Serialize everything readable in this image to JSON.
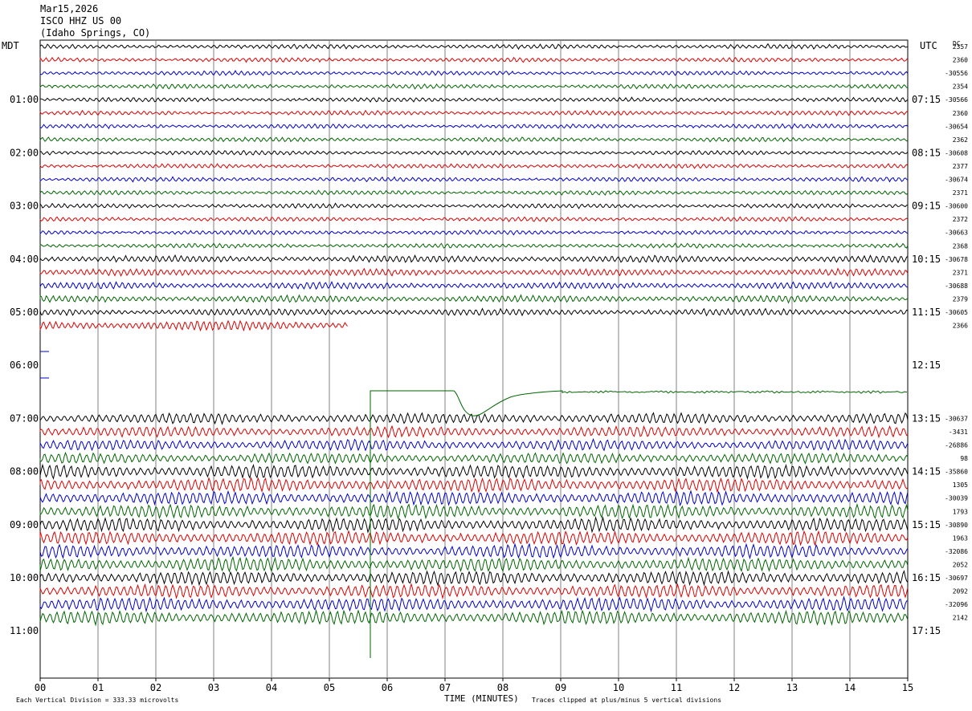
{
  "header": {
    "date": "Mar15,2026",
    "station": "ISCO HHZ US 00",
    "location": "(Idaho Springs, CO)"
  },
  "chart_data": {
    "type": "line",
    "left_zone_label": "MDT",
    "right_zone_label": "UTC",
    "dc_label": "DC",
    "xlabel": "TIME (MINUTES)",
    "xlim": [
      0,
      15
    ],
    "x_ticks": [
      "00",
      "01",
      "02",
      "03",
      "04",
      "05",
      "06",
      "07",
      "08",
      "09",
      "10",
      "11",
      "12",
      "13",
      "14",
      "15"
    ],
    "traces_per_hour": 4,
    "minutes_per_trace": 15,
    "trace_colors": [
      "#000000",
      "#dd0000",
      "#0000cc",
      "#006600"
    ],
    "hours": [
      {
        "mdt": "01:00",
        "utc": "07:15"
      },
      {
        "mdt": "02:00",
        "utc": "08:15"
      },
      {
        "mdt": "03:00",
        "utc": "09:15"
      },
      {
        "mdt": "04:00",
        "utc": "10:15"
      },
      {
        "mdt": "05:00",
        "utc": "11:15"
      },
      {
        "mdt": "06:00",
        "utc": "12:15"
      },
      {
        "mdt": "07:00",
        "utc": "13:15"
      },
      {
        "mdt": "08:00",
        "utc": "14:15"
      },
      {
        "mdt": "09:00",
        "utc": "15:15"
      },
      {
        "mdt": "10:00",
        "utc": "16:15"
      },
      {
        "mdt": "11:00",
        "utc": "17:15"
      }
    ],
    "dc_offsets": [
      "2357",
      "2360",
      "-30556",
      "2354",
      "-30566",
      "2360",
      "-30654",
      "2362",
      "-30608",
      "2377",
      "-30674",
      "2371",
      "-30600",
      "2372",
      "-30663",
      "2368",
      "-30678",
      "2371",
      "-30688",
      "2379",
      "-30605",
      "2366",
      "",
      "",
      "",
      "",
      "",
      "",
      "-30637",
      "-3431",
      "-26886",
      "98",
      "-35860",
      "1305",
      "-30039",
      "1793",
      "-30890",
      "1963",
      "-32086",
      "2052",
      "-30697",
      "2092",
      "-32096",
      "2142"
    ],
    "footer_left": "Each Vertical Division =  333.33 microvolts",
    "footer_right": "Traces clipped at plus/minus 5 vertical divisions"
  }
}
